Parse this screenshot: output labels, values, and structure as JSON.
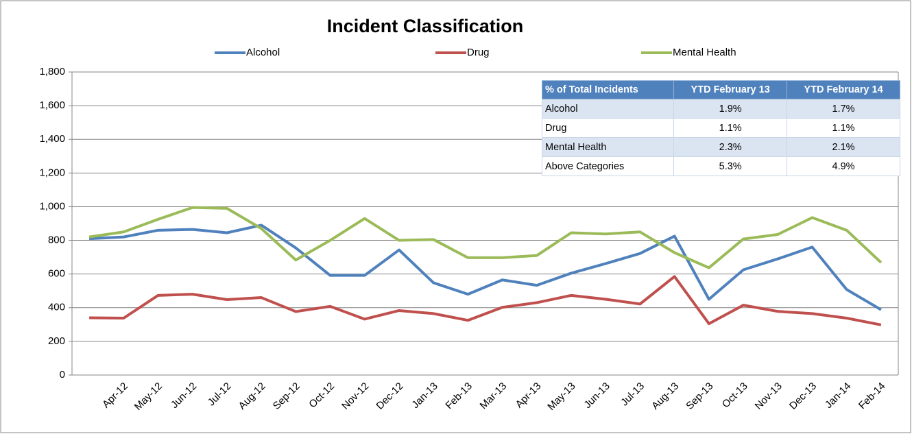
{
  "chart_data": {
    "type": "line",
    "title": "Incident Classification",
    "categories": [
      null,
      "Apr-12",
      "May-12",
      "Jun-12",
      "Jul-12",
      "Aug-12",
      "Sep-12",
      "Oct-12",
      "Nov-12",
      "Dec-12",
      "Jan-13",
      "Feb-13",
      "Mar-13",
      "Apr-13",
      "May-13",
      "Jun-13",
      "Jul-13",
      "Aug-13",
      "Sep-13",
      "Oct-13",
      "Nov-13",
      "Dec-13",
      "Jan-14",
      "Feb-14"
    ],
    "series": [
      {
        "name": "Alcohol",
        "color": "#4f81bd",
        "values": [
          810,
          820,
          860,
          865,
          845,
          890,
          755,
          592,
          592,
          743,
          548,
          480,
          565,
          533,
          605,
          662,
          722,
          825,
          450,
          625,
          690,
          760,
          508,
          388
        ]
      },
      {
        "name": "Drug",
        "color": "#c0504d",
        "values": [
          340,
          338,
          473,
          480,
          448,
          460,
          377,
          408,
          332,
          383,
          365,
          325,
          402,
          430,
          473,
          450,
          422,
          585,
          305,
          415,
          378,
          365,
          338,
          298
        ]
      },
      {
        "name": "Mental Health",
        "color": "#9bbb59",
        "values": [
          820,
          850,
          925,
          995,
          990,
          870,
          683,
          800,
          930,
          800,
          805,
          697,
          697,
          710,
          845,
          838,
          850,
          727,
          637,
          808,
          835,
          935,
          860,
          668
        ]
      }
    ],
    "ylim": [
      0,
      1800
    ],
    "yticks": [
      0,
      200,
      400,
      600,
      800,
      {
        "value": 1000,
        "label": "1,000"
      },
      {
        "value": 1200,
        "label": "1,200"
      },
      {
        "value": 1400,
        "label": "1,400"
      },
      {
        "value": 1600,
        "label": "1,600"
      },
      {
        "value": 1800,
        "label": "1,800"
      }
    ],
    "grid": true,
    "table": {
      "columns": [
        "% of Total Incidents",
        "YTD February 13",
        "YTD February 14"
      ],
      "rows": [
        [
          "Alcohol",
          "1.9%",
          "1.7%"
        ],
        [
          "Drug",
          "1.1%",
          "1.1%"
        ],
        [
          "Mental Health",
          "2.3%",
          "2.1%"
        ],
        [
          "Above Categories",
          "5.3%",
          "4.9%"
        ]
      ]
    }
  }
}
